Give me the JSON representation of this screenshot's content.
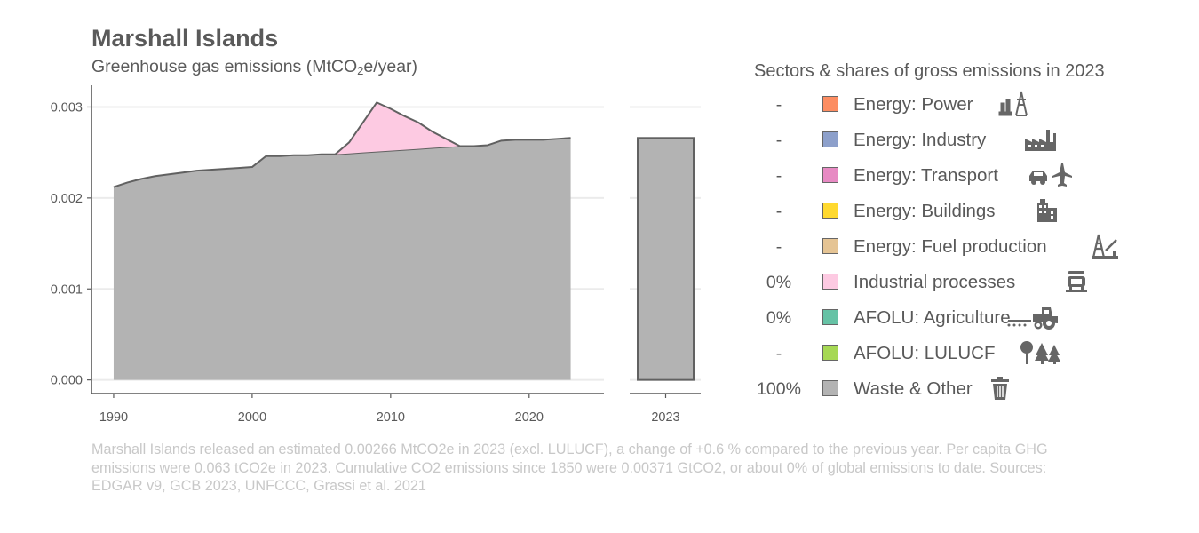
{
  "title": "Marshall Islands",
  "subtitle_main": "Greenhouse gas emissions (MtCO",
  "subtitle_sub": "2",
  "subtitle_end": "e/year)",
  "colors": {
    "waste_other": "#b3b3b3",
    "industrial_processes": "#fdcae2",
    "outline": "#616161",
    "grid": "#ebebeb",
    "axis": "#595959"
  },
  "chart_data": {
    "type": "area",
    "x": [
      1990,
      1991,
      1992,
      1993,
      1994,
      1995,
      1996,
      1997,
      1998,
      1999,
      2000,
      2001,
      2002,
      2003,
      2004,
      2005,
      2006,
      2007,
      2008,
      2009,
      2010,
      2011,
      2012,
      2013,
      2014,
      2015,
      2016,
      2017,
      2018,
      2019,
      2020,
      2021,
      2022,
      2023
    ],
    "series": [
      {
        "name": "Waste & Other",
        "color": "#b3b3b3",
        "values": [
          0.00212,
          0.00217,
          0.00221,
          0.00224,
          0.00226,
          0.00228,
          0.0023,
          0.00231,
          0.00232,
          0.00233,
          0.00234,
          0.00246,
          0.00246,
          0.00247,
          0.00247,
          0.00248,
          0.00248,
          0.00249,
          0.0025,
          0.00251,
          0.00252,
          0.00253,
          0.00254,
          0.00255,
          0.00256,
          0.00257,
          0.00257,
          0.00258,
          0.00263,
          0.00264,
          0.00264,
          0.00264,
          0.00265,
          0.00266
        ]
      },
      {
        "name": "Industrial processes",
        "color": "#fdcae2",
        "values": [
          0,
          0,
          0,
          0,
          0,
          0,
          0,
          0,
          0,
          0,
          0,
          0,
          0,
          0,
          0,
          0,
          0,
          0.00012,
          0.00033,
          0.00054,
          0.00046,
          0.00037,
          0.00029,
          0.00018,
          9e-05,
          0,
          0,
          0,
          0,
          0,
          0,
          0,
          0,
          0
        ]
      }
    ],
    "xticks": [
      "1990",
      "2000",
      "2010",
      "2020"
    ],
    "yticks": [
      "0.000",
      "0.001",
      "0.002",
      "0.003"
    ],
    "ylim": [
      -0.00015,
      0.0032
    ],
    "xlim": [
      1988.4,
      2025.4
    ],
    "bar_panel": {
      "category": "2023",
      "value": 0.00266,
      "color": "#b3b3b3"
    }
  },
  "legend": {
    "title": "Sectors & shares of gross emissions in 2023",
    "items": [
      {
        "share": "-",
        "label": "Energy: Power",
        "color": "#fc8d62",
        "icon": "power-plant-icon"
      },
      {
        "share": "-",
        "label": "Energy: Industry",
        "color": "#8da0cb",
        "icon": "factory-icon"
      },
      {
        "share": "-",
        "label": "Energy: Transport",
        "color": "#e78ac3",
        "icon": "car-plane-icon"
      },
      {
        "share": "-",
        "label": "Energy: Buildings",
        "color": "#ffd92f",
        "icon": "buildings-icon"
      },
      {
        "share": "-",
        "label": "Energy: Fuel production",
        "color": "#e5c494",
        "icon": "oil-rig-icon"
      },
      {
        "share": "0%",
        "label": "Industrial processes",
        "color": "#fdcae2",
        "icon": "cement-mixer-icon"
      },
      {
        "share": "0%",
        "label": "AFOLU: Agriculture",
        "color": "#66c2a5",
        "icon": "tractor-icon"
      },
      {
        "share": "-",
        "label": "AFOLU: LULUCF",
        "color": "#a6d854",
        "icon": "trees-icon"
      },
      {
        "share": "100%",
        "label": "Waste & Other",
        "color": "#b3b3b3",
        "icon": "trash-icon"
      }
    ]
  },
  "caption": "Marshall Islands released an estimated 0.00266 MtCO2e in 2023 (excl. LULUCF), a change of +0.6 % compared to the previous year. Per capita GHG emissions were 0.063 tCO2e in 2023. Cumulative CO2 emissions since 1850 were 0.00371 GtCO2, or about 0% of global emissions to date. Sources: EDGAR v9, GCB 2023, UNFCCC, Grassi et al. 2021"
}
